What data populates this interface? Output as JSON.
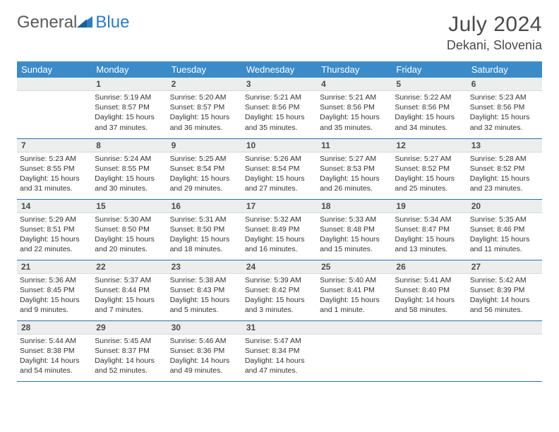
{
  "brand": {
    "part1": "General",
    "part2": "Blue"
  },
  "title": "July 2024",
  "location": "Dekani, Slovenia",
  "colors": {
    "header_bg": "#3b8bc9",
    "header_text": "#ffffff",
    "daynum_bg": "#eceeee",
    "row_divider": "#2b6fa8",
    "brand_gray": "#5a5a5a",
    "brand_blue": "#2b7cc0",
    "body_text": "#333333"
  },
  "weekdays": [
    "Sunday",
    "Monday",
    "Tuesday",
    "Wednesday",
    "Thursday",
    "Friday",
    "Saturday"
  ],
  "start_offset": 1,
  "days": [
    {
      "n": 1,
      "sunrise": "5:19 AM",
      "sunset": "8:57 PM",
      "daylight": "15 hours and 37 minutes."
    },
    {
      "n": 2,
      "sunrise": "5:20 AM",
      "sunset": "8:57 PM",
      "daylight": "15 hours and 36 minutes."
    },
    {
      "n": 3,
      "sunrise": "5:21 AM",
      "sunset": "8:56 PM",
      "daylight": "15 hours and 35 minutes."
    },
    {
      "n": 4,
      "sunrise": "5:21 AM",
      "sunset": "8:56 PM",
      "daylight": "15 hours and 35 minutes."
    },
    {
      "n": 5,
      "sunrise": "5:22 AM",
      "sunset": "8:56 PM",
      "daylight": "15 hours and 34 minutes."
    },
    {
      "n": 6,
      "sunrise": "5:23 AM",
      "sunset": "8:56 PM",
      "daylight": "15 hours and 32 minutes."
    },
    {
      "n": 7,
      "sunrise": "5:23 AM",
      "sunset": "8:55 PM",
      "daylight": "15 hours and 31 minutes."
    },
    {
      "n": 8,
      "sunrise": "5:24 AM",
      "sunset": "8:55 PM",
      "daylight": "15 hours and 30 minutes."
    },
    {
      "n": 9,
      "sunrise": "5:25 AM",
      "sunset": "8:54 PM",
      "daylight": "15 hours and 29 minutes."
    },
    {
      "n": 10,
      "sunrise": "5:26 AM",
      "sunset": "8:54 PM",
      "daylight": "15 hours and 27 minutes."
    },
    {
      "n": 11,
      "sunrise": "5:27 AM",
      "sunset": "8:53 PM",
      "daylight": "15 hours and 26 minutes."
    },
    {
      "n": 12,
      "sunrise": "5:27 AM",
      "sunset": "8:52 PM",
      "daylight": "15 hours and 25 minutes."
    },
    {
      "n": 13,
      "sunrise": "5:28 AM",
      "sunset": "8:52 PM",
      "daylight": "15 hours and 23 minutes."
    },
    {
      "n": 14,
      "sunrise": "5:29 AM",
      "sunset": "8:51 PM",
      "daylight": "15 hours and 22 minutes."
    },
    {
      "n": 15,
      "sunrise": "5:30 AM",
      "sunset": "8:50 PM",
      "daylight": "15 hours and 20 minutes."
    },
    {
      "n": 16,
      "sunrise": "5:31 AM",
      "sunset": "8:50 PM",
      "daylight": "15 hours and 18 minutes."
    },
    {
      "n": 17,
      "sunrise": "5:32 AM",
      "sunset": "8:49 PM",
      "daylight": "15 hours and 16 minutes."
    },
    {
      "n": 18,
      "sunrise": "5:33 AM",
      "sunset": "8:48 PM",
      "daylight": "15 hours and 15 minutes."
    },
    {
      "n": 19,
      "sunrise": "5:34 AM",
      "sunset": "8:47 PM",
      "daylight": "15 hours and 13 minutes."
    },
    {
      "n": 20,
      "sunrise": "5:35 AM",
      "sunset": "8:46 PM",
      "daylight": "15 hours and 11 minutes."
    },
    {
      "n": 21,
      "sunrise": "5:36 AM",
      "sunset": "8:45 PM",
      "daylight": "15 hours and 9 minutes."
    },
    {
      "n": 22,
      "sunrise": "5:37 AM",
      "sunset": "8:44 PM",
      "daylight": "15 hours and 7 minutes."
    },
    {
      "n": 23,
      "sunrise": "5:38 AM",
      "sunset": "8:43 PM",
      "daylight": "15 hours and 5 minutes."
    },
    {
      "n": 24,
      "sunrise": "5:39 AM",
      "sunset": "8:42 PM",
      "daylight": "15 hours and 3 minutes."
    },
    {
      "n": 25,
      "sunrise": "5:40 AM",
      "sunset": "8:41 PM",
      "daylight": "15 hours and 1 minute."
    },
    {
      "n": 26,
      "sunrise": "5:41 AM",
      "sunset": "8:40 PM",
      "daylight": "14 hours and 58 minutes."
    },
    {
      "n": 27,
      "sunrise": "5:42 AM",
      "sunset": "8:39 PM",
      "daylight": "14 hours and 56 minutes."
    },
    {
      "n": 28,
      "sunrise": "5:44 AM",
      "sunset": "8:38 PM",
      "daylight": "14 hours and 54 minutes."
    },
    {
      "n": 29,
      "sunrise": "5:45 AM",
      "sunset": "8:37 PM",
      "daylight": "14 hours and 52 minutes."
    },
    {
      "n": 30,
      "sunrise": "5:46 AM",
      "sunset": "8:36 PM",
      "daylight": "14 hours and 49 minutes."
    },
    {
      "n": 31,
      "sunrise": "5:47 AM",
      "sunset": "8:34 PM",
      "daylight": "14 hours and 47 minutes."
    }
  ],
  "labels": {
    "sunrise": "Sunrise:",
    "sunset": "Sunset:",
    "daylight": "Daylight:"
  }
}
